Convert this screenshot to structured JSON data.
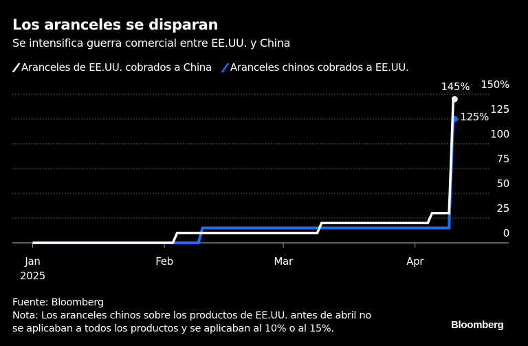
{
  "chart_data": {
    "type": "line",
    "title": "Los aranceles se disparan",
    "subtitle": "Se intensifica guerra comercial entre EE.UU. y China",
    "xlabel": "",
    "ylabel": "",
    "ylim": [
      0,
      150
    ],
    "yticks": [
      {
        "value": 0,
        "label": "0"
      },
      {
        "value": 25,
        "label": "25"
      },
      {
        "value": 50,
        "label": "50"
      },
      {
        "value": 75,
        "label": "75"
      },
      {
        "value": 100,
        "label": "100"
      },
      {
        "value": 125,
        "label": "125"
      },
      {
        "value": 150,
        "label": "150%"
      }
    ],
    "xticks": [
      {
        "date": "2025-01-01",
        "label": "Jan",
        "sublabel": "2025"
      },
      {
        "date": "2025-02-01",
        "label": "Feb"
      },
      {
        "date": "2025-03-01",
        "label": "Mar"
      },
      {
        "date": "2025-04-01",
        "label": "Apr"
      }
    ],
    "grid": true,
    "legend_placement": "top-left",
    "series": [
      {
        "name": "Aranceles de EE.UU. cobrados a China",
        "color": "#ffffff",
        "end_label": "145%",
        "points": [
          [
            "2025-01-01",
            0
          ],
          [
            "2025-02-03",
            0
          ],
          [
            "2025-02-04",
            10
          ],
          [
            "2025-03-09",
            10
          ],
          [
            "2025-03-10",
            20
          ],
          [
            "2025-04-04",
            20
          ],
          [
            "2025-04-05",
            30
          ],
          [
            "2025-04-09",
            30
          ],
          [
            "2025-04-10",
            145
          ]
        ]
      },
      {
        "name": "Aranceles chinos cobrados a EE.UU.",
        "color": "#1a6fff",
        "end_label": "125%",
        "points": [
          [
            "2025-01-01",
            0
          ],
          [
            "2025-02-09",
            0
          ],
          [
            "2025-02-10",
            15
          ],
          [
            "2025-04-09",
            15
          ],
          [
            "2025-04-10",
            125
          ]
        ]
      }
    ]
  },
  "footer": {
    "source": "Fuente: Bloomberg",
    "note_line1": "Nota: Los aranceles chinos sobre los productos de EE.UU. antes de abril no",
    "note_line2": "se aplicaban a todos los productos y se aplicaban al 10% o al 15%."
  },
  "logo": "Bloomberg"
}
